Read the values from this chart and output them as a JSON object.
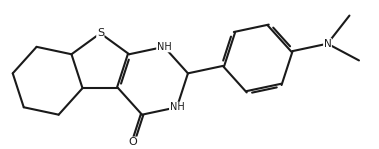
{
  "background_color": "#ffffff",
  "line_color": "#1a1a1a",
  "line_width": 1.5,
  "dbo": 0.022,
  "font_size": 7.5,
  "figsize": [
    3.79,
    1.49
  ],
  "dpi": 100,
  "xlim": [
    -0.5,
    7.0
  ],
  "ylim": [
    -1.4,
    1.6
  ]
}
